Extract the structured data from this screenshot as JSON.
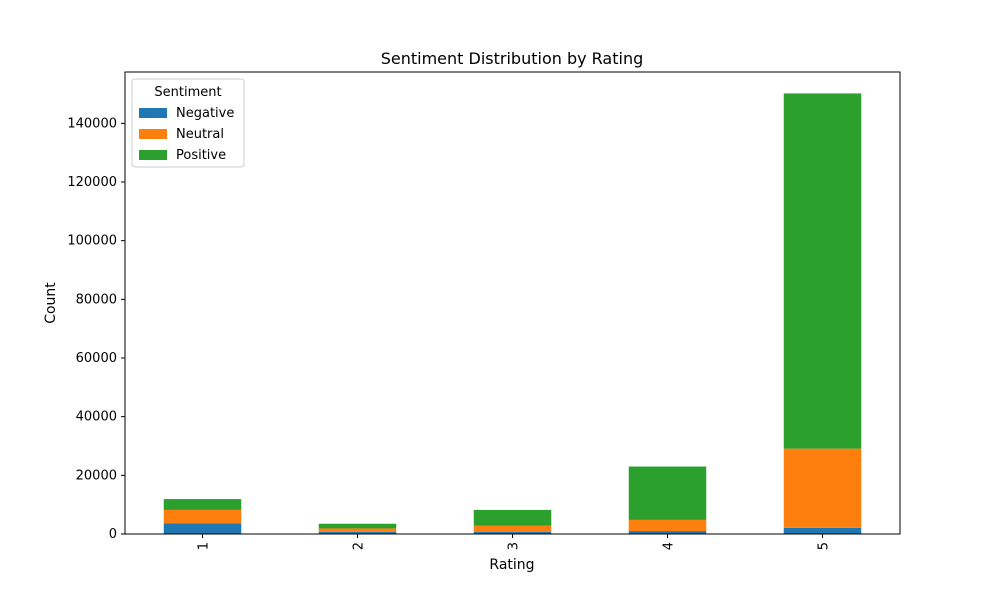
{
  "chart_data": {
    "type": "bar",
    "stacked": true,
    "title": "Sentiment Distribution by Rating",
    "xlabel": "Rating",
    "ylabel": "Count",
    "categories": [
      "1",
      "2",
      "3",
      "4",
      "5"
    ],
    "ylim": [
      0,
      157500
    ],
    "yticks": [
      0,
      20000,
      40000,
      60000,
      80000,
      100000,
      120000,
      140000
    ],
    "grid": false,
    "legend": {
      "title": "Sentiment",
      "placement": "top-left"
    },
    "series": [
      {
        "name": "Negative",
        "color": "#1f77b4",
        "values": [
          3600,
          700,
          700,
          1000,
          2100
        ]
      },
      {
        "name": "Neutral",
        "color": "#ff7f0e",
        "values": [
          4600,
          1200,
          2100,
          3800,
          27000
        ]
      },
      {
        "name": "Positive",
        "color": "#2ca02c",
        "values": [
          3700,
          1600,
          5400,
          18200,
          121100
        ]
      }
    ]
  }
}
